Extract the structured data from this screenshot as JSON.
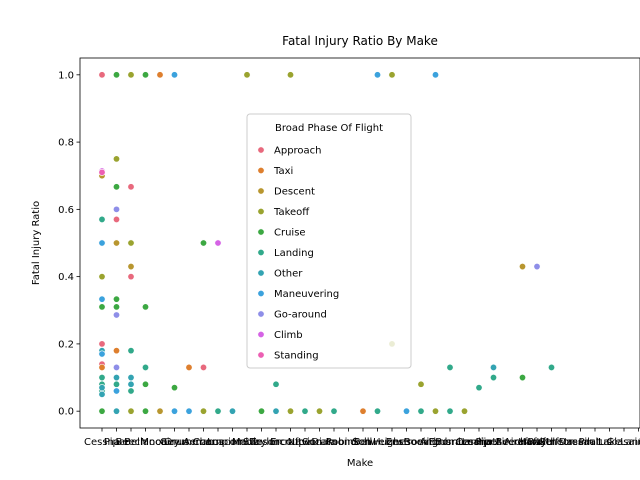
{
  "chart_data": {
    "type": "scatter",
    "title": "Fatal Injury Ratio By Make",
    "xlabel": "Make",
    "ylabel": "Fatal Injury Ratio",
    "ylim": [
      -0.05,
      1.05
    ],
    "yticks": [
      0.0,
      0.2,
      0.4,
      0.6,
      0.8,
      1.0
    ],
    "grid": false,
    "legend": {
      "title": "Broad Phase Of Flight",
      "placement": "upper-center"
    },
    "categories": [
      "Cessna",
      "Piper",
      "Beech",
      "Bellanca",
      "Mooney",
      "Cirrus",
      "Grumman",
      "Aeronca",
      "Champion",
      "Luscombe",
      "Maule",
      "Stinson",
      "Taylorcraft",
      "Ercoupe",
      "Navion",
      "Socata",
      "Diamond",
      "Robinson",
      "Bell",
      "Schweizer",
      "Hughes",
      "Enstrom",
      "Boeing",
      "Airbus",
      "Embraer",
      "Bombardier",
      "Learjet",
      "Cessna Aircraft",
      "Piper Aircraft",
      "Beechcraft",
      "Hawker",
      "Raytheon",
      "Gulfstream",
      "Dassault",
      "Pilatus",
      "Lake",
      "Glasair",
      "Lancair",
      "Kitfox",
      "Rans",
      "Aviat",
      "American",
      "Helio",
      "Ayres",
      "Company"
    ],
    "series": [
      {
        "name": "Approach",
        "color": "#e8697d",
        "points": [
          [
            0,
            1.0
          ],
          [
            0,
            0.2
          ],
          [
            0,
            0.14
          ],
          [
            1,
            0.57
          ],
          [
            2,
            0.667
          ],
          [
            2,
            0.4
          ],
          [
            7,
            0.13
          ],
          [
            16,
            0.0
          ]
        ]
      },
      {
        "name": "Taxi",
        "color": "#de7f2e",
        "points": [
          [
            0,
            0.13
          ],
          [
            0,
            0.1
          ],
          [
            1,
            0.18
          ],
          [
            1,
            0.0
          ],
          [
            4,
            1.0
          ],
          [
            6,
            0.13
          ],
          [
            18,
            0.0
          ]
        ]
      },
      {
        "name": "Descent",
        "color": "#b8962f",
        "points": [
          [
            0,
            0.7
          ],
          [
            1,
            0.5
          ],
          [
            2,
            0.43
          ],
          [
            2,
            0.0
          ],
          [
            4,
            0.0
          ],
          [
            29,
            0.43
          ]
        ]
      },
      {
        "name": "Takeoff",
        "color": "#9aa32f",
        "points": [
          [
            0,
            0.4
          ],
          [
            1,
            0.75
          ],
          [
            2,
            1.0
          ],
          [
            2,
            0.5
          ],
          [
            2,
            0.0
          ],
          [
            5,
            0.0
          ],
          [
            7,
            0.0
          ],
          [
            10,
            1.0
          ],
          [
            13,
            1.0
          ],
          [
            13,
            0.0
          ],
          [
            15,
            0.0
          ],
          [
            20,
            1.0
          ],
          [
            20,
            0.2
          ],
          [
            22,
            0.08
          ],
          [
            23,
            0.0
          ],
          [
            25,
            0.0
          ],
          [
            27,
            0.13
          ]
        ]
      },
      {
        "name": "Cruise",
        "color": "#3ca842",
        "points": [
          [
            0,
            0.31
          ],
          [
            0,
            0.0
          ],
          [
            1,
            1.0
          ],
          [
            1,
            0.667
          ],
          [
            1,
            0.333
          ],
          [
            1,
            0.31
          ],
          [
            1,
            0.0
          ],
          [
            3,
            1.0
          ],
          [
            3,
            0.31
          ],
          [
            3,
            0.08
          ],
          [
            3,
            0.0
          ],
          [
            5,
            0.07
          ],
          [
            7,
            0.5
          ],
          [
            11,
            0.0
          ],
          [
            21,
            0.0
          ],
          [
            29,
            0.1
          ]
        ]
      },
      {
        "name": "Landing",
        "color": "#31a98a",
        "points": [
          [
            0,
            0.57
          ],
          [
            0,
            0.1
          ],
          [
            0,
            0.08
          ],
          [
            0,
            0.06
          ],
          [
            1,
            0.08
          ],
          [
            1,
            0.06
          ],
          [
            2,
            0.18
          ],
          [
            2,
            0.06
          ],
          [
            3,
            0.13
          ],
          [
            8,
            0.0
          ],
          [
            12,
            0.08
          ],
          [
            14,
            0.0
          ],
          [
            16,
            0.0
          ],
          [
            19,
            0.0
          ],
          [
            22,
            0.0
          ],
          [
            24,
            0.13
          ],
          [
            24,
            0.0
          ],
          [
            26,
            0.07
          ],
          [
            27,
            0.1
          ],
          [
            31,
            0.13
          ]
        ]
      },
      {
        "name": "Other",
        "color": "#33a3b2",
        "points": [
          [
            0,
            0.18
          ],
          [
            0,
            0.07
          ],
          [
            0,
            0.05
          ],
          [
            1,
            0.1
          ],
          [
            1,
            0.0
          ],
          [
            2,
            0.1
          ],
          [
            2,
            0.08
          ],
          [
            9,
            0.0
          ],
          [
            12,
            0.0
          ],
          [
            27,
            0.13
          ]
        ]
      },
      {
        "name": "Maneuvering",
        "color": "#3ba2dd",
        "points": [
          [
            0,
            0.5
          ],
          [
            0,
            0.333
          ],
          [
            0,
            0.17
          ],
          [
            1,
            0.06
          ],
          [
            5,
            1.0
          ],
          [
            5,
            0.0
          ],
          [
            6,
            0.0
          ],
          [
            19,
            1.0
          ],
          [
            21,
            0.0
          ],
          [
            23,
            1.0
          ]
        ]
      },
      {
        "name": "Go-around",
        "color": "#8e8ee8",
        "points": [
          [
            1,
            0.6
          ],
          [
            1,
            0.286
          ],
          [
            1,
            0.13
          ],
          [
            30,
            0.43
          ]
        ]
      },
      {
        "name": "Climb",
        "color": "#d563e5",
        "points": [
          [
            0,
            0.714
          ],
          [
            8,
            0.5
          ]
        ]
      },
      {
        "name": "Standing",
        "color": "#ec5fb3",
        "points": [
          [
            0,
            0.71
          ]
        ]
      }
    ]
  }
}
